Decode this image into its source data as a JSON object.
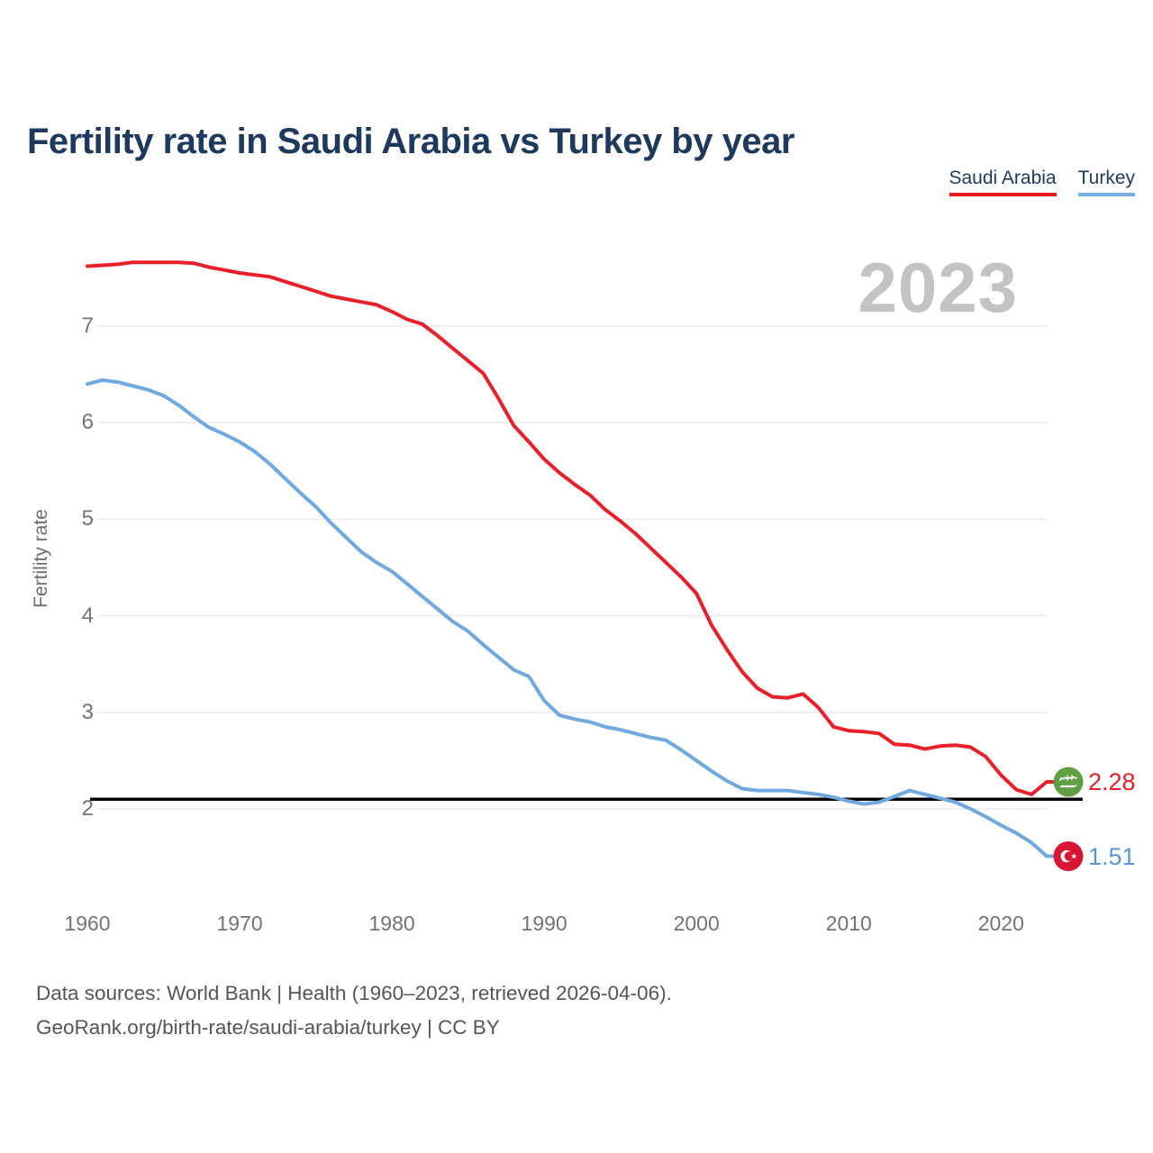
{
  "page": {
    "footer_line1": "Data sources: World Bank | Health (1960–2023, retrieved 2026-04-06).",
    "footer_line2": "GeoRank.org/birth-rate/saudi-arabia/turkey | CC BY"
  },
  "legend": {
    "items": [
      {
        "label": "Saudi Arabia",
        "underline_color": "#ee1620"
      },
      {
        "label": "Turkey",
        "underline_color": "#74aee0"
      }
    ]
  },
  "chart_data": {
    "type": "line",
    "title": "Fertility rate in Saudi Arabia vs Turkey by year",
    "ylabel": "Fertility rate",
    "xlabel": "",
    "watermark": "2023",
    "x_range": [
      1960,
      2023
    ],
    "ylim": [
      1.4,
      7.9
    ],
    "y_ticks": [
      2,
      3,
      4,
      5,
      6,
      7
    ],
    "x_ticks": [
      1960,
      1970,
      1980,
      1990,
      2000,
      2010,
      2020
    ],
    "grid": "horizontal",
    "legend_position": "top-right",
    "reference_line": {
      "value": 2.1,
      "color": "#000000"
    },
    "years": [
      1960,
      1961,
      1962,
      1963,
      1964,
      1965,
      1966,
      1967,
      1968,
      1969,
      1970,
      1971,
      1972,
      1973,
      1974,
      1975,
      1976,
      1977,
      1978,
      1979,
      1980,
      1981,
      1982,
      1983,
      1984,
      1985,
      1986,
      1987,
      1988,
      1989,
      1990,
      1991,
      1992,
      1993,
      1994,
      1995,
      1996,
      1997,
      1998,
      1999,
      2000,
      2001,
      2002,
      2003,
      2004,
      2005,
      2006,
      2007,
      2008,
      2009,
      2010,
      2011,
      2012,
      2013,
      2014,
      2015,
      2016,
      2017,
      2018,
      2019,
      2020,
      2021,
      2022,
      2023
    ],
    "series": [
      {
        "name": "Saudi Arabia",
        "color": "#e9202a",
        "flag": "saudi-arabia-flag",
        "flag_color": "#5f9f42",
        "end_label": "2.28",
        "end_value": 2.28,
        "values": [
          7.62,
          7.63,
          7.64,
          7.66,
          7.66,
          7.66,
          7.66,
          7.65,
          7.61,
          7.58,
          7.55,
          7.53,
          7.51,
          7.46,
          7.41,
          7.36,
          7.31,
          7.28,
          7.25,
          7.22,
          7.15,
          7.07,
          7.02,
          6.9,
          6.77,
          6.64,
          6.51,
          6.25,
          5.97,
          5.8,
          5.62,
          5.48,
          5.36,
          5.25,
          5.1,
          4.98,
          4.85,
          4.7,
          4.55,
          4.4,
          4.23,
          3.9,
          3.65,
          3.42,
          3.25,
          3.16,
          3.15,
          3.19,
          3.05,
          2.85,
          2.81,
          2.8,
          2.78,
          2.67,
          2.66,
          2.62,
          2.65,
          2.66,
          2.64,
          2.54,
          2.35,
          2.2,
          2.15,
          2.28
        ]
      },
      {
        "name": "Turkey",
        "color": "#6fa9e0",
        "flag": "turkey-flag",
        "flag_color": "#d81535",
        "end_label": "1.51",
        "end_value": 1.51,
        "label_color": "#5696d8",
        "values": [
          6.4,
          6.44,
          6.42,
          6.38,
          6.34,
          6.28,
          6.18,
          6.06,
          5.95,
          5.88,
          5.8,
          5.7,
          5.57,
          5.42,
          5.27,
          5.13,
          4.96,
          4.81,
          4.66,
          4.55,
          4.46,
          4.33,
          4.2,
          4.07,
          3.94,
          3.84,
          3.7,
          3.57,
          3.44,
          3.37,
          3.12,
          2.97,
          2.93,
          2.9,
          2.85,
          2.82,
          2.78,
          2.74,
          2.71,
          2.61,
          2.5,
          2.39,
          2.29,
          2.21,
          2.19,
          2.19,
          2.19,
          2.17,
          2.15,
          2.12,
          2.08,
          2.05,
          2.07,
          2.13,
          2.19,
          2.15,
          2.11,
          2.07,
          2.0,
          1.92,
          1.83,
          1.75,
          1.65,
          1.51
        ]
      }
    ]
  }
}
